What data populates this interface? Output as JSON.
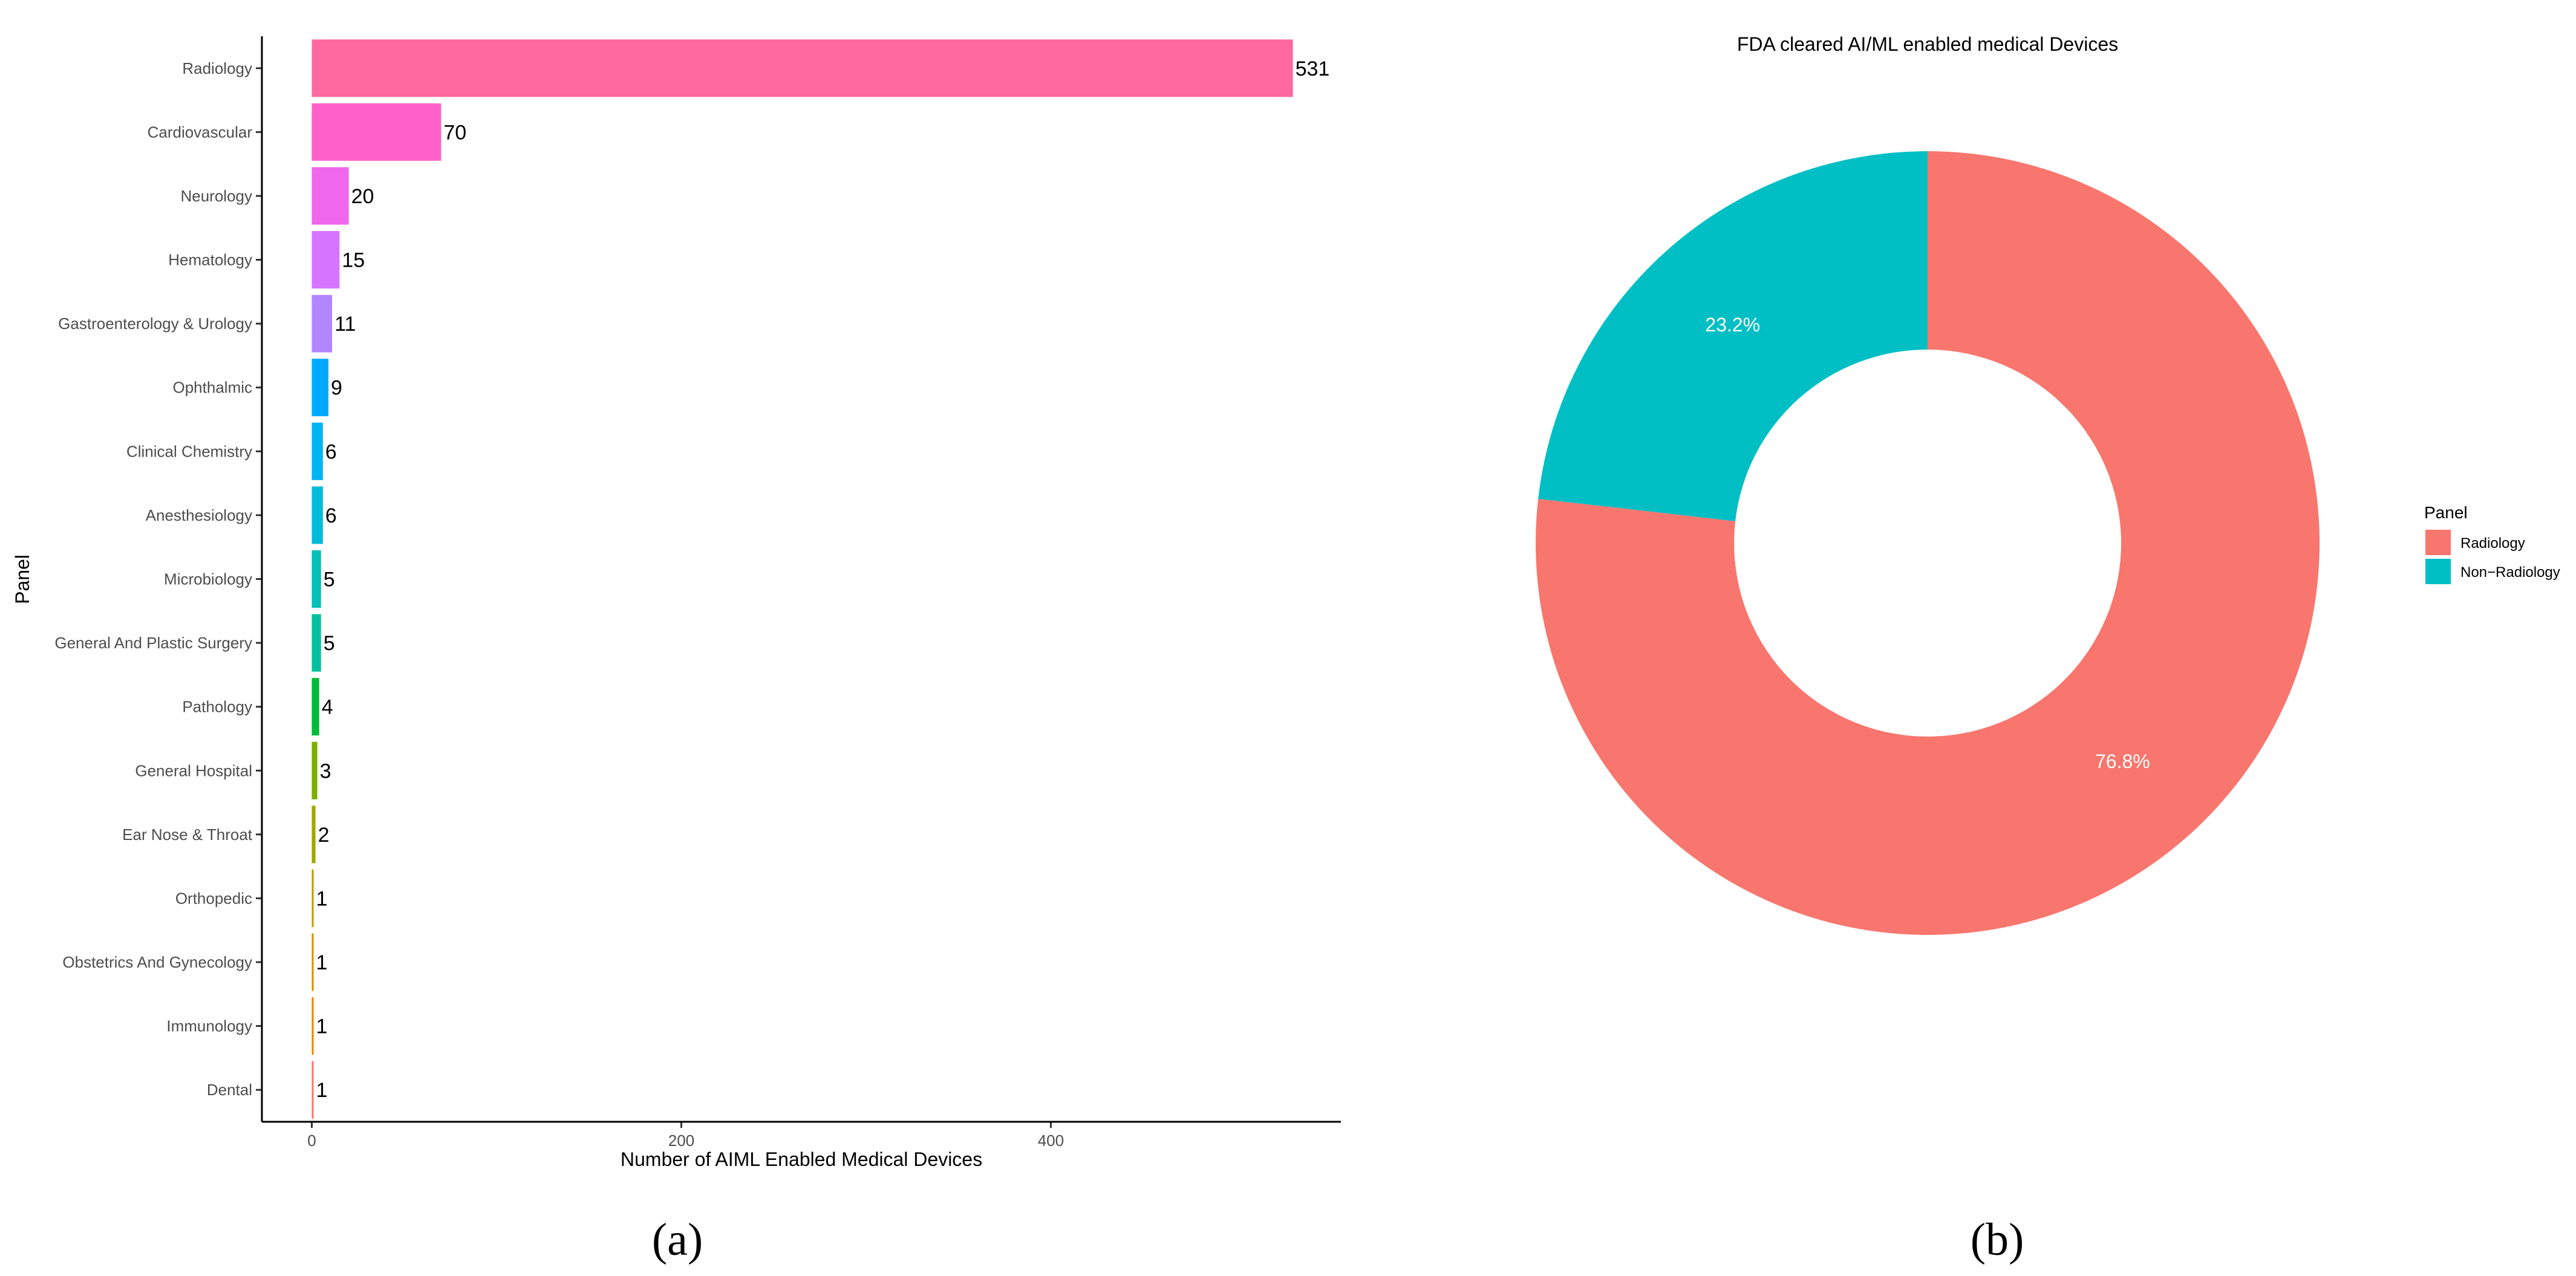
{
  "chart_data": [
    {
      "type": "bar",
      "orientation": "horizontal",
      "categories": [
        "Radiology",
        "Cardiovascular",
        "Neurology",
        "Hematology",
        "Gastroenterology & Urology",
        "Ophthalmic",
        "Clinical Chemistry",
        "Anesthesiology",
        "Microbiology",
        "General And Plastic Surgery",
        "Pathology",
        "General Hospital",
        "Ear Nose & Throat",
        "Orthopedic",
        "Obstetrics And Gynecology",
        "Immunology",
        "Dental"
      ],
      "values": [
        531,
        70,
        20,
        15,
        11,
        9,
        6,
        6,
        5,
        5,
        4,
        3,
        2,
        1,
        1,
        1,
        1
      ],
      "colors": [
        "#FF689F",
        "#FF61C9",
        "#EF67EB",
        "#D575FE",
        "#B186FF",
        "#00A9FF",
        "#00B4F0",
        "#00BCD8",
        "#00C0B8",
        "#00C19F",
        "#00BA38",
        "#7CAE00",
        "#A3A500",
        "#BB9D00",
        "#D39200",
        "#E58700",
        "#F8766D"
      ],
      "xlabel": "Number of AIML Enabled Medical Devices",
      "ylabel": "Panel",
      "xticks": [
        0,
        200,
        400
      ],
      "xlim": [
        -27,
        557
      ],
      "grid": false,
      "caption": "(a)"
    },
    {
      "type": "pie",
      "donut": true,
      "title": "FDA cleared AI/ML enabled medical Devices",
      "labels": [
        "Radiology",
        "Non−Radiology"
      ],
      "values": [
        76.8,
        23.2
      ],
      "value_labels": [
        "76.8%",
        "23.2%"
      ],
      "colors": [
        "#F8766D",
        "#00BFC4"
      ],
      "legend_title": "Panel",
      "legend_position": "right",
      "caption": "(b)"
    }
  ]
}
